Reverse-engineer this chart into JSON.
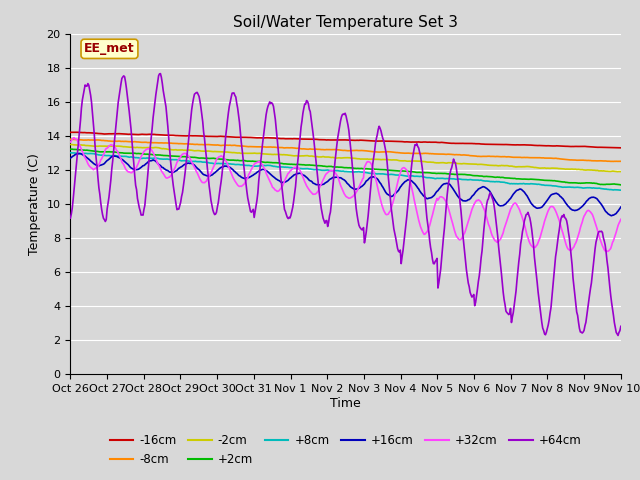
{
  "title": "Soil/Water Temperature Set 3",
  "xlabel": "Time",
  "ylabel": "Temperature (C)",
  "ylim": [
    0,
    20
  ],
  "xlim": [
    0,
    15
  ],
  "bg_color": "#d8d8d8",
  "annotation_text": "EE_met",
  "annotation_bg": "#ffffcc",
  "annotation_border": "#cc9900",
  "annotation_text_color": "#990000",
  "x_tick_labels": [
    "Oct 26",
    "Oct 27",
    "Oct 28",
    "Oct 29",
    "Oct 30",
    "Oct 31",
    "Nov 1",
    "Nov 2",
    "Nov 3",
    "Nov 4",
    "Nov 5",
    "Nov 6",
    "Nov 7",
    "Nov 8",
    "Nov 9",
    "Nov 10"
  ],
  "series_order": [
    "-16cm",
    "-8cm",
    "-2cm",
    "+2cm",
    "+8cm",
    "+16cm",
    "+32cm",
    "+64cm"
  ],
  "series": {
    "-16cm": {
      "color": "#cc0000",
      "lw": 1.2
    },
    "-8cm": {
      "color": "#ff8800",
      "lw": 1.2
    },
    "-2cm": {
      "color": "#cccc00",
      "lw": 1.2
    },
    "+2cm": {
      "color": "#00bb00",
      "lw": 1.2
    },
    "+8cm": {
      "color": "#00bbbb",
      "lw": 1.2
    },
    "+16cm": {
      "color": "#0000bb",
      "lw": 1.2
    },
    "+32cm": {
      "color": "#ff44ff",
      "lw": 1.2
    },
    "+64cm": {
      "color": "#9900cc",
      "lw": 1.2
    }
  },
  "grid_color": "#ffffff",
  "tick_fontsize": 8,
  "label_fontsize": 9,
  "title_fontsize": 11
}
